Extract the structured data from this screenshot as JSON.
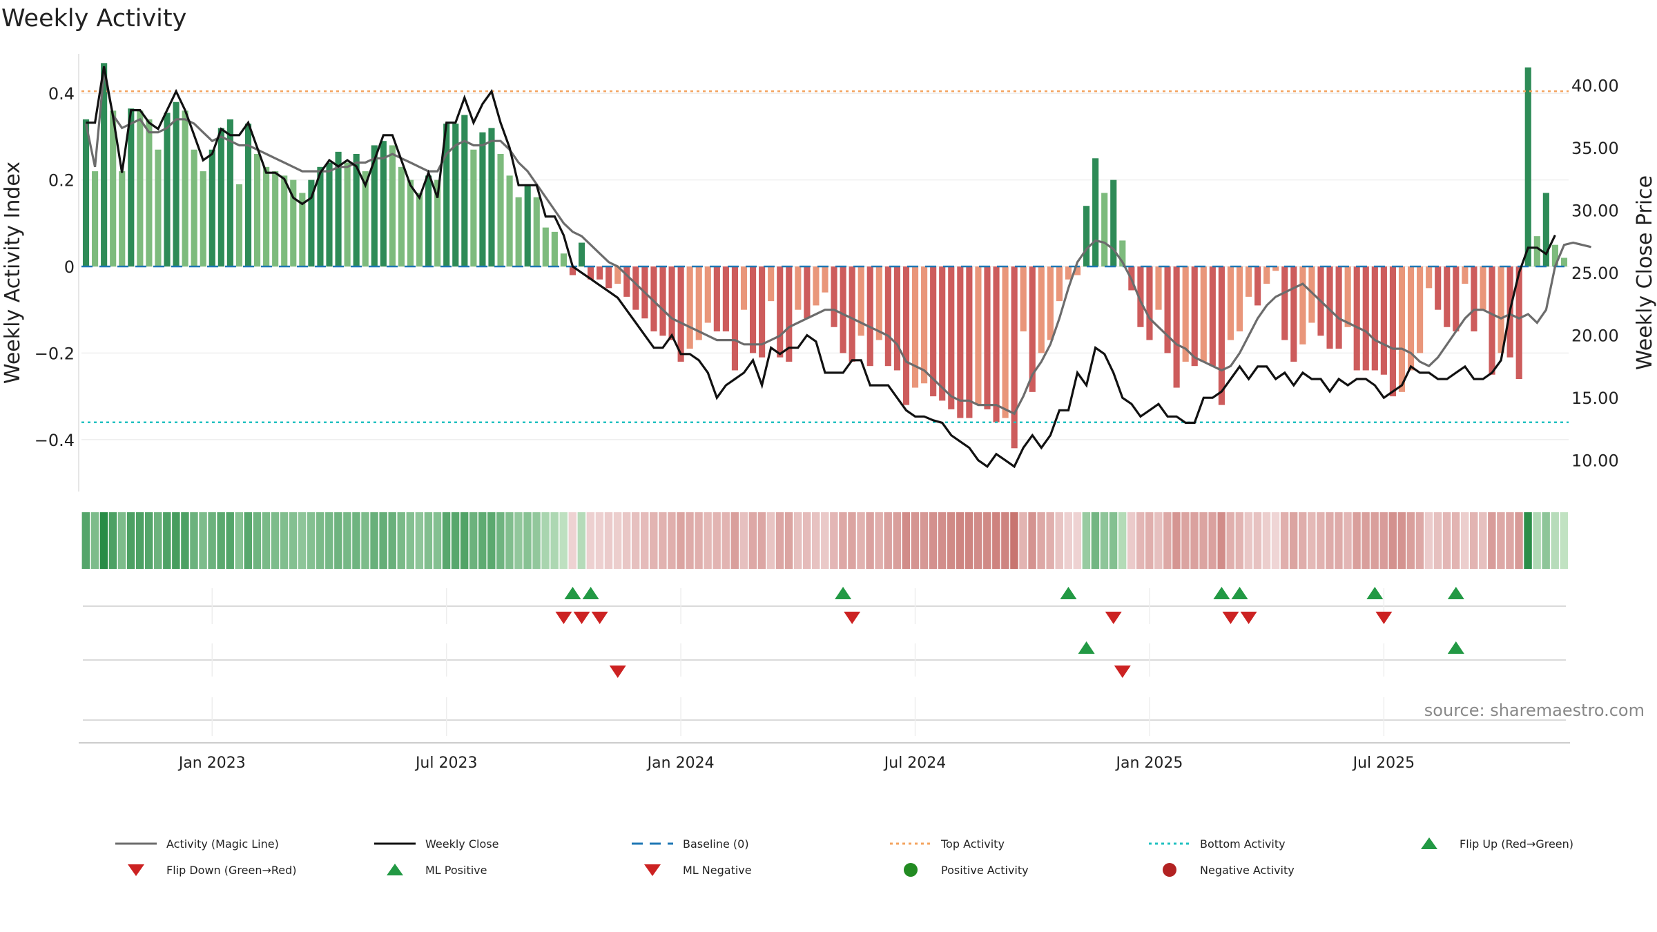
{
  "chart_data": {
    "type": "bar",
    "title": "Weekly Activity",
    "ylabel": "Weekly Activity Index",
    "y2label": "Weekly Close Price",
    "ylim": [
      -0.52,
      0.52
    ],
    "y2lim": [
      7.5,
      43.5
    ],
    "yticks": [
      {
        "v": 0.4,
        "label": "0.4"
      },
      {
        "v": 0.2,
        "label": "0.2"
      },
      {
        "v": 0,
        "label": "0"
      },
      {
        "v": -0.2,
        "label": "−0.2"
      },
      {
        "v": -0.4,
        "label": "−0.4"
      }
    ],
    "y2ticks": [
      {
        "v": 40,
        "label": "40.00"
      },
      {
        "v": 35,
        "label": "35.00"
      },
      {
        "v": 30,
        "label": "30.00"
      },
      {
        "v": 25,
        "label": "25.00"
      },
      {
        "v": 20,
        "label": "20.00"
      },
      {
        "v": 15,
        "label": "15.00"
      },
      {
        "v": 10,
        "label": "10.00"
      }
    ],
    "xticks": [
      {
        "week": 14,
        "label": "Jan 2023"
      },
      {
        "week": 40,
        "label": "Jul 2023"
      },
      {
        "week": 66,
        "label": "Jan 2024"
      },
      {
        "week": 92,
        "label": "Jul 2024"
      },
      {
        "week": 118,
        "label": "Jan 2025"
      },
      {
        "week": 144,
        "label": "Jul 2025"
      }
    ],
    "top_activity": 0.405,
    "bottom_activity": -0.36,
    "baseline": 0,
    "activity": [
      0.34,
      0.22,
      0.47,
      0.36,
      0.22,
      0.365,
      0.36,
      0.34,
      0.27,
      0.355,
      0.38,
      0.36,
      0.27,
      0.22,
      0.27,
      0.32,
      0.34,
      0.19,
      0.33,
      0.26,
      0.23,
      0.22,
      0.21,
      0.2,
      0.17,
      0.2,
      0.23,
      0.24,
      0.265,
      0.24,
      0.26,
      0.22,
      0.28,
      0.29,
      0.28,
      0.23,
      0.2,
      0.17,
      0.21,
      0.2,
      0.33,
      0.33,
      0.35,
      0.27,
      0.31,
      0.32,
      0.26,
      0.21,
      0.16,
      0.19,
      0.16,
      0.09,
      0.08,
      0.03,
      -0.02,
      0.055,
      -0.03,
      -0.03,
      -0.05,
      -0.04,
      -0.07,
      -0.1,
      -0.12,
      -0.15,
      -0.16,
      -0.17,
      -0.22,
      -0.19,
      -0.17,
      -0.13,
      -0.15,
      -0.15,
      -0.24,
      -0.1,
      -0.2,
      -0.21,
      -0.08,
      -0.21,
      -0.22,
      -0.1,
      -0.12,
      -0.09,
      -0.06,
      -0.14,
      -0.2,
      -0.22,
      -0.16,
      -0.23,
      -0.17,
      -0.23,
      -0.24,
      -0.32,
      -0.28,
      -0.27,
      -0.3,
      -0.31,
      -0.33,
      -0.35,
      -0.35,
      -0.32,
      -0.33,
      -0.36,
      -0.35,
      -0.42,
      -0.15,
      -0.29,
      -0.2,
      -0.17,
      -0.08,
      -0.03,
      -0.02,
      0.14,
      0.25,
      0.17,
      0.2,
      0.06,
      -0.055,
      -0.14,
      -0.17,
      -0.1,
      -0.2,
      -0.28,
      -0.22,
      -0.23,
      -0.22,
      -0.23,
      -0.32,
      -0.17,
      -0.15,
      -0.07,
      -0.09,
      -0.04,
      -0.01,
      -0.17,
      -0.22,
      -0.18,
      -0.13,
      -0.16,
      -0.19,
      -0.19,
      -0.14,
      -0.24,
      -0.24,
      -0.24,
      -0.25,
      -0.3,
      -0.29,
      -0.24,
      -0.2,
      -0.05,
      -0.1,
      -0.14,
      -0.15,
      -0.04,
      -0.15,
      -0.1,
      -0.25,
      -0.2,
      -0.21,
      -0.26,
      0.46,
      0.07,
      0.17,
      0.05,
      0.02
    ],
    "magic_line": [
      0.33,
      0.23,
      0.45,
      0.35,
      0.32,
      0.33,
      0.34,
      0.31,
      0.31,
      0.32,
      0.34,
      0.34,
      0.33,
      0.31,
      0.29,
      0.3,
      0.29,
      0.28,
      0.28,
      0.27,
      0.26,
      0.25,
      0.24,
      0.23,
      0.22,
      0.22,
      0.22,
      0.22,
      0.23,
      0.23,
      0.24,
      0.24,
      0.25,
      0.25,
      0.26,
      0.25,
      0.24,
      0.23,
      0.22,
      0.22,
      0.26,
      0.28,
      0.29,
      0.28,
      0.28,
      0.29,
      0.29,
      0.27,
      0.24,
      0.22,
      0.19,
      0.16,
      0.13,
      0.1,
      0.08,
      0.07,
      0.05,
      0.03,
      0.01,
      0.0,
      -0.02,
      -0.04,
      -0.06,
      -0.08,
      -0.1,
      -0.12,
      -0.13,
      -0.14,
      -0.15,
      -0.16,
      -0.17,
      -0.17,
      -0.17,
      -0.18,
      -0.18,
      -0.18,
      -0.17,
      -0.16,
      -0.14,
      -0.13,
      -0.12,
      -0.11,
      -0.1,
      -0.1,
      -0.11,
      -0.12,
      -0.13,
      -0.14,
      -0.15,
      -0.16,
      -0.18,
      -0.22,
      -0.23,
      -0.24,
      -0.26,
      -0.28,
      -0.3,
      -0.31,
      -0.31,
      -0.32,
      -0.32,
      -0.32,
      -0.33,
      -0.34,
      -0.3,
      -0.25,
      -0.22,
      -0.18,
      -0.12,
      -0.05,
      0.01,
      0.04,
      0.06,
      0.055,
      0.04,
      0.01,
      -0.03,
      -0.08,
      -0.12,
      -0.14,
      -0.16,
      -0.18,
      -0.19,
      -0.21,
      -0.22,
      -0.23,
      -0.24,
      -0.23,
      -0.2,
      -0.16,
      -0.12,
      -0.09,
      -0.07,
      -0.06,
      -0.05,
      -0.04,
      -0.06,
      -0.08,
      -0.1,
      -0.12,
      -0.13,
      -0.14,
      -0.15,
      -0.17,
      -0.18,
      -0.19,
      -0.19,
      -0.2,
      -0.22,
      -0.23,
      -0.21,
      -0.18,
      -0.15,
      -0.12,
      -0.1,
      -0.1,
      -0.11,
      -0.12,
      -0.11,
      -0.12,
      -0.11,
      -0.13,
      -0.1,
      0.0,
      0.05,
      0.055,
      0.05,
      0.045
    ],
    "weekly_close": [
      37,
      37,
      41.5,
      37.5,
      33,
      38,
      38,
      37,
      36.5,
      38,
      39.5,
      38,
      36,
      34,
      34.5,
      36.5,
      36,
      36,
      37,
      35,
      33,
      33,
      32.5,
      31,
      30.5,
      31,
      33,
      34,
      33.5,
      34,
      33.5,
      32,
      34,
      36,
      36,
      34,
      32,
      31,
      33,
      31,
      37,
      37,
      39,
      37,
      38.5,
      39.5,
      37,
      35,
      32,
      32,
      32,
      29.5,
      29.5,
      28,
      25.5,
      25,
      24.5,
      24,
      23.5,
      23,
      22,
      21,
      20,
      19,
      19,
      20,
      18.5,
      18.5,
      18,
      17,
      15,
      16,
      16.5,
      17,
      18,
      16,
      19,
      18.5,
      19,
      19,
      20,
      19.5,
      17,
      17,
      17,
      18,
      18,
      16,
      16,
      16,
      15,
      14,
      13.5,
      13.5,
      13.2,
      13,
      12,
      11.5,
      11,
      10,
      9.5,
      10.5,
      10,
      9.5,
      11,
      12,
      11,
      12,
      14,
      14,
      17,
      16,
      19,
      18.5,
      17,
      15,
      14.5,
      13.5,
      14,
      14.5,
      13.5,
      13.5,
      13,
      13,
      15,
      15,
      15.5,
      16.5,
      17.5,
      16.5,
      17.5,
      17.5,
      16.5,
      17,
      16,
      17,
      16.5,
      16.5,
      15.5,
      16.5,
      16,
      16.5,
      16.5,
      16,
      15,
      15.5,
      16,
      17.5,
      17,
      17,
      16.5,
      16.5,
      17,
      17.5,
      16.5,
      16.5,
      17,
      18,
      22,
      25,
      27,
      27,
      26.5,
      28
    ],
    "flip_up_weeks": [
      54,
      56,
      84,
      109,
      126,
      128,
      143,
      152
    ],
    "flip_down_weeks": [
      53,
      55,
      57,
      85,
      114,
      127,
      129,
      144
    ],
    "ml_positive_weeks": [
      111,
      152
    ],
    "ml_negative_weeks": [
      59,
      115
    ],
    "legend": {
      "magic_line": "Activity (Magic Line)",
      "weekly_close": "Weekly Close",
      "baseline": "Baseline (0)",
      "top": "Top Activity",
      "bottom": "Bottom Activity",
      "flip_up": "Flip Up (Red→Green)",
      "flip_down": "Flip Down (Green→Red)",
      "ml_pos": "ML Positive",
      "ml_neg": "ML Negative",
      "pos_act": "Positive Activity",
      "neg_act": "Negative Activity"
    },
    "source": "source: sharemaestro.com",
    "colors": {
      "pos_dark": "#2e8b57",
      "pos_light": "#7dbb7d",
      "neg_dark": "#cd5c5c",
      "neg_light": "#e9967a",
      "magic": "#6c6c6c",
      "close": "#111111",
      "baseline": "#1f77b4",
      "top": "#f4a460",
      "bottom": "#20c0c0",
      "up": "#229944",
      "down": "#cc2222",
      "pos_dot": "#228b22",
      "neg_dot": "#b22222"
    }
  }
}
